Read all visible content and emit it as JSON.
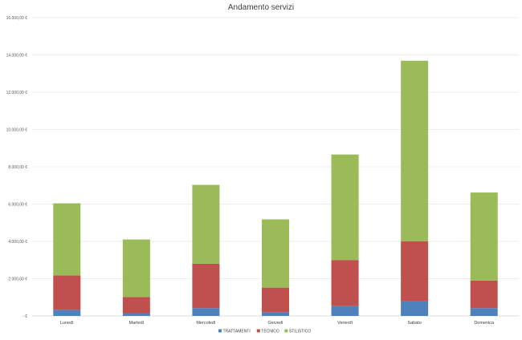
{
  "chart_data": {
    "type": "bar",
    "stacked": true,
    "title": "Andamento servizi",
    "xlabel": "",
    "ylabel": "",
    "categories": [
      "Lunedì",
      "Martedì",
      "Mercoledì",
      "Giovedì",
      "Venerdì",
      "Sabato",
      "Domenica"
    ],
    "series": [
      {
        "name": "TRATTAMENTI",
        "color": "#4f81bd",
        "values": [
          330,
          150,
          420,
          200,
          530,
          780,
          420
        ]
      },
      {
        "name": "TECNICO",
        "color": "#c0504d",
        "values": [
          1840,
          870,
          2380,
          1320,
          2470,
          3230,
          1480
        ]
      },
      {
        "name": "STILISTICO",
        "color": "#9bbb59",
        "values": [
          3870,
          3080,
          4230,
          3660,
          5660,
          9680,
          4720
        ]
      }
    ],
    "ylim": [
      0,
      16000
    ],
    "yticks": [
      0,
      2000,
      4000,
      6000,
      8000,
      10000,
      12000,
      14000,
      16000
    ],
    "ytick_labels": [
      " - €",
      "2.000,00 €",
      "4.000,00 €",
      "6.000,00 €",
      "8.000,00 €",
      "10.000,00 €",
      "12.000,00 €",
      "14.000,00 €",
      "16.000,00 €"
    ],
    "grid": true,
    "legend_position": "bottom",
    "grid_color": "#d9d9d9"
  }
}
